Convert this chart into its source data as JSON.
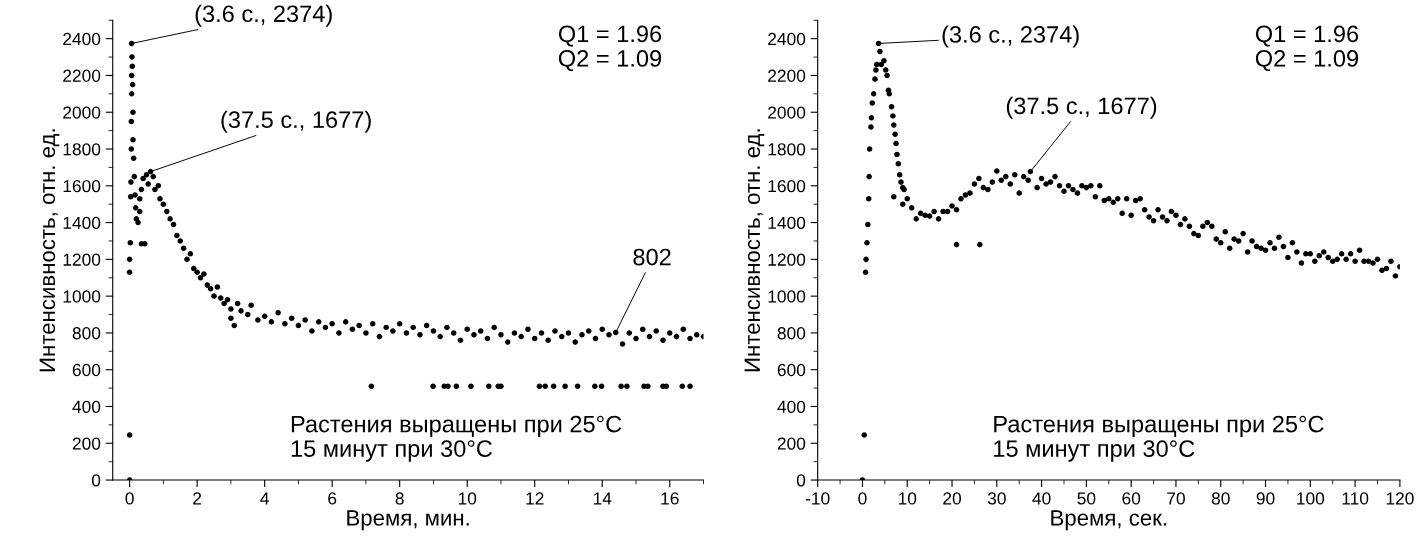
{
  "chart_data": [
    {
      "type": "scatter",
      "xlabel": "Время, мин.",
      "ylabel": "Интенсивность, отн. ед.",
      "xlim": [
        -0.5,
        17
      ],
      "ylim": [
        0,
        2500
      ],
      "xticks": [
        0,
        2,
        4,
        6,
        8,
        10,
        12,
        14,
        16
      ],
      "yticks": [
        0,
        200,
        400,
        600,
        800,
        1000,
        1200,
        1400,
        1600,
        1800,
        2000,
        2200,
        2400
      ],
      "marker": "circle",
      "grid": false,
      "series": [
        {
          "color": "#000000",
          "x": [
            0,
            0,
            0,
            0,
            0.02,
            0.03,
            0.04,
            0.05,
            0.05,
            0.06,
            0.06,
            0.06,
            0.07,
            0.08,
            0.09,
            0.1,
            0.1,
            0.12,
            0.14,
            0.16,
            0.18,
            0.2,
            0.25,
            0.3,
            0.35,
            0.45,
            0.3,
            0.35,
            0.4,
            0.5,
            0.55,
            0.62,
            0.7,
            0.75,
            0.85,
            0.9,
            1.0,
            1.1,
            1.2,
            1.3,
            1.4,
            1.5,
            1.6,
            1.7,
            1.8,
            1.9,
            2.0,
            2.1,
            2.2,
            2.3,
            2.4,
            2.5,
            2.6,
            2.7,
            2.8,
            2.9,
            3.0,
            3.0,
            3.1,
            3.2,
            3.3,
            3.5,
            3.6,
            3.8,
            4.0,
            4.2,
            4.4,
            4.6,
            4.8,
            5.0,
            5.2,
            5.4,
            5.6,
            5.8,
            6.0,
            6.2,
            6.4,
            6.6,
            6.8,
            7.0,
            7.2,
            7.4,
            7.6,
            7.8,
            8.0,
            8.2,
            8.4,
            8.6,
            8.8,
            9.0,
            9.2,
            9.4,
            9.6,
            9.8,
            10.0,
            10.2,
            10.4,
            10.6,
            10.8,
            11.0,
            11.2,
            11.4,
            11.6,
            11.8,
            12.0,
            12.2,
            12.4,
            12.6,
            12.8,
            13.0,
            13.2,
            13.4,
            13.6,
            13.8,
            14.0,
            14.2,
            14.4,
            14.6,
            14.8,
            15.0,
            15.2,
            15.4,
            15.6,
            15.8,
            16.0,
            16.2,
            16.4,
            16.6,
            16.8,
            17.0,
            7.16,
            8.99,
            9.32,
            9.43,
            9.68,
            10.11,
            10.64,
            10.92,
            11.0,
            12.14,
            12.31,
            12.56,
            12.9,
            13.27,
            13.78,
            13.98,
            14.56,
            14.73,
            15.24,
            15.35,
            15.8,
            15.9,
            16.37,
            16.6
          ],
          "values": [
            0,
            245,
            1130,
            1200,
            1290,
            1540,
            1620,
            1800,
            1950,
            2100,
            2200,
            2374,
            2300,
            2250,
            2150,
            2000,
            1850,
            1750,
            1650,
            1550,
            1480,
            1420,
            1400,
            1460,
            1285,
            1285,
            1530,
            1580,
            1640,
            1660,
            1610,
            1677,
            1650,
            1580,
            1600,
            1530,
            1500,
            1460,
            1420,
            1390,
            1330,
            1300,
            1260,
            1200,
            1230,
            1150,
            1130,
            1100,
            1120,
            1060,
            1040,
            1000,
            1050,
            990,
            960,
            980,
            930,
            880,
            840,
            960,
            920,
            900,
            950,
            870,
            890,
            860,
            910,
            850,
            880,
            840,
            870,
            810,
            860,
            830,
            850,
            800,
            860,
            820,
            840,
            800,
            850,
            780,
            830,
            810,
            850,
            800,
            830,
            790,
            840,
            810,
            780,
            830,
            800,
            760,
            820,
            790,
            810,
            770,
            830,
            790,
            750,
            800,
            780,
            820,
            770,
            800,
            760,
            810,
            780,
            800,
            750,
            790,
            810,
            770,
            820,
            790,
            802,
            740,
            800,
            770,
            820,
            780,
            810,
            760,
            800,
            780,
            820,
            770,
            790,
            780,
            510,
            510,
            510,
            510,
            510,
            510,
            510,
            510,
            510,
            510,
            510,
            510,
            510,
            510,
            510,
            510,
            510,
            510,
            510,
            510,
            510,
            510,
            510,
            510
          ]
        }
      ],
      "annotations": [
        {
          "text": "(3.6 с., 2374)",
          "x": 0.06,
          "y": 2374
        },
        {
          "text": "(37.5 с., 1677)",
          "x": 0.62,
          "y": 1677
        },
        {
          "text": "802",
          "x": 14.4,
          "y": 802
        },
        "Q1 = 1.96\nQ2 = 1.09",
        "Растения выращены при 25°C\n15 минут при 30°C"
      ]
    },
    {
      "type": "scatter",
      "xlabel": "Время, сек.",
      "ylabel": "Интенсивность, отн. ед.",
      "xlim": [
        -10,
        120
      ],
      "ylim": [
        0,
        2500
      ],
      "xticks": [
        -10,
        0,
        10,
        20,
        30,
        40,
        50,
        60,
        70,
        80,
        90,
        100,
        110,
        120
      ],
      "yticks": [
        0,
        200,
        400,
        600,
        800,
        1000,
        1200,
        1400,
        1600,
        1800,
        2000,
        2200,
        2400
      ],
      "marker": "circle",
      "grid": false,
      "series": [
        {
          "color": "#000000",
          "x": [
            0,
            0.4,
            0.7,
            0.8,
            1,
            1.2,
            1.4,
            1.5,
            1.6,
            1.9,
            2.0,
            2.2,
            2.5,
            2.8,
            3.0,
            3.2,
            3.6,
            3.9,
            4.2,
            4.8,
            5.2,
            5.5,
            5.8,
            6.0,
            6.5,
            6.8,
            7.0,
            7.3,
            7.5,
            7.7,
            8.0,
            8.3,
            8.6,
            9.0,
            9.3,
            7.0,
            9.0,
            10,
            11,
            12,
            13,
            14,
            15,
            16,
            17,
            18,
            19,
            20,
            21,
            22,
            23,
            24,
            25,
            26,
            27,
            28,
            29,
            21,
            26.2,
            30,
            31,
            32,
            33,
            34,
            35,
            36,
            37,
            37.5,
            39,
            40,
            41,
            42,
            43,
            44,
            45,
            46,
            47,
            48,
            49,
            50,
            51,
            52,
            53,
            54,
            55,
            56,
            57,
            58,
            59,
            60,
            61,
            62,
            63,
            64,
            65,
            66,
            67,
            68,
            69,
            70,
            71,
            72,
            73,
            74,
            75,
            76,
            77,
            78,
            79,
            80,
            81,
            82,
            83,
            84,
            85,
            86,
            87,
            88,
            89,
            90,
            91,
            92,
            93,
            94,
            95,
            96,
            97,
            98,
            99,
            100,
            101,
            102,
            103,
            104,
            105,
            106,
            107,
            108,
            109,
            110,
            111,
            112,
            113,
            114,
            115,
            116,
            117,
            118,
            119,
            120
          ],
          "values": [
            0,
            245,
            1130,
            1200,
            1290,
            1390,
            1530,
            1650,
            1800,
            1920,
            1970,
            2050,
            2100,
            2180,
            2230,
            2260,
            2374,
            2330,
            2260,
            2280,
            2230,
            2200,
            2120,
            2100,
            2030,
            1980,
            1930,
            1880,
            1830,
            1770,
            1720,
            1660,
            1620,
            1590,
            1580,
            1540,
            1500,
            1530,
            1480,
            1420,
            1450,
            1440,
            1435,
            1460,
            1420,
            1460,
            1460,
            1490,
            1470,
            1530,
            1550,
            1560,
            1610,
            1640,
            1590,
            1580,
            1620,
            1280,
            1280,
            1680,
            1630,
            1650,
            1610,
            1660,
            1560,
            1650,
            1630,
            1677,
            1590,
            1640,
            1610,
            1620,
            1650,
            1600,
            1570,
            1600,
            1580,
            1560,
            1600,
            1590,
            1600,
            1540,
            1600,
            1520,
            1530,
            1510,
            1530,
            1450,
            1530,
            1440,
            1520,
            1530,
            1470,
            1430,
            1410,
            1470,
            1430,
            1410,
            1460,
            1440,
            1390,
            1420,
            1380,
            1340,
            1330,
            1380,
            1400,
            1380,
            1310,
            1290,
            1350,
            1260,
            1310,
            1300,
            1340,
            1240,
            1300,
            1270,
            1260,
            1250,
            1290,
            1260,
            1320,
            1270,
            1210,
            1290,
            1240,
            1180,
            1230,
            1230,
            1190,
            1220,
            1240,
            1210,
            1190,
            1200,
            1230,
            1200,
            1230,
            1190,
            1250,
            1190,
            1190,
            1180,
            1200,
            1140,
            1150,
            1190,
            1110,
            1160
          ]
        }
      ],
      "annotations": [
        {
          "text": "(3.6 с., 2374)",
          "x": 3.6,
          "y": 2374
        },
        {
          "text": "(37.5 с., 1677)",
          "x": 37.5,
          "y": 1677
        },
        "Q1 = 1.96\nQ2 = 1.09",
        "Растения выращены при 25°C\n15 минут при 30°C"
      ]
    }
  ]
}
